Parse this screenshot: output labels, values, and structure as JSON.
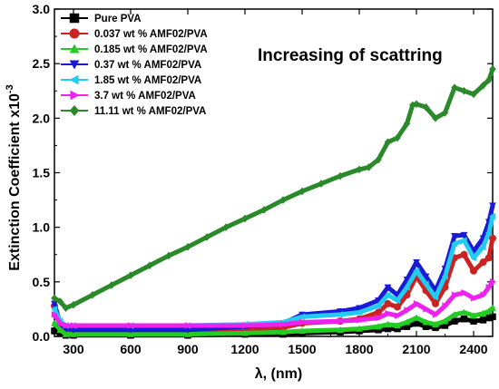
{
  "chart_data": {
    "type": "line",
    "title": "",
    "xlabel": "λ, (nm)",
    "ylabel": "Extinction Coefficient x10",
    "ylabel_superscript": "-3",
    "xlim": [
      200,
      2500
    ],
    "ylim": [
      0,
      3.0
    ],
    "xticks": [
      300,
      600,
      900,
      1200,
      1500,
      1800,
      2100,
      2400
    ],
    "yticks": [
      0.0,
      0.5,
      1.0,
      1.5,
      2.0,
      2.5,
      3.0
    ],
    "ytick_labels": [
      "0.0",
      "0.5",
      "1.0",
      "1.5",
      "2.0",
      "2.5",
      "3.0"
    ],
    "annotation": "Increasing of scattring",
    "legend_position": "top-left",
    "series": [
      {
        "name": "Pure PVA",
        "color": "#000000",
        "marker": "square",
        "x": [
          200,
          230,
          260,
          300,
          600,
          900,
          1200,
          1400,
          1500,
          1700,
          1800,
          1900,
          1950,
          2000,
          2050,
          2100,
          2150,
          2200,
          2250,
          2300,
          2350,
          2400,
          2450,
          2480,
          2500
        ],
        "y": [
          0.05,
          0.03,
          0.01,
          0.01,
          0.01,
          0.01,
          0.02,
          0.02,
          0.03,
          0.04,
          0.05,
          0.06,
          0.07,
          0.07,
          0.09,
          0.12,
          0.09,
          0.08,
          0.1,
          0.14,
          0.16,
          0.14,
          0.15,
          0.17,
          0.18
        ]
      },
      {
        "name": "0.037 wt % AMF02/PVA",
        "color": "#cc2222",
        "marker": "circle",
        "x": [
          200,
          230,
          260,
          300,
          600,
          900,
          1200,
          1400,
          1500,
          1700,
          1800,
          1900,
          1950,
          2000,
          2050,
          2100,
          2150,
          2200,
          2250,
          2300,
          2350,
          2400,
          2450,
          2480,
          2500
        ],
        "y": [
          0.28,
          0.1,
          0.06,
          0.05,
          0.05,
          0.05,
          0.07,
          0.08,
          0.12,
          0.14,
          0.16,
          0.22,
          0.3,
          0.27,
          0.38,
          0.55,
          0.42,
          0.3,
          0.45,
          0.72,
          0.75,
          0.6,
          0.68,
          0.72,
          0.9
        ]
      },
      {
        "name": "0.185 wt % AMF02/PVA",
        "color": "#22cc22",
        "marker": "triangle-up",
        "x": [
          200,
          230,
          260,
          300,
          600,
          900,
          1200,
          1400,
          1500,
          1700,
          1800,
          1900,
          1950,
          2000,
          2050,
          2100,
          2150,
          2200,
          2250,
          2300,
          2350,
          2400,
          2450,
          2480,
          2500
        ],
        "y": [
          0.12,
          0.06,
          0.02,
          0.02,
          0.02,
          0.02,
          0.03,
          0.04,
          0.05,
          0.06,
          0.07,
          0.09,
          0.11,
          0.1,
          0.13,
          0.17,
          0.13,
          0.11,
          0.14,
          0.2,
          0.22,
          0.19,
          0.21,
          0.23,
          0.26
        ]
      },
      {
        "name": "0.37 wt % AMF02/PVA",
        "color": "#1a1ad6",
        "marker": "triangle-down",
        "x": [
          200,
          230,
          260,
          300,
          600,
          900,
          1200,
          1400,
          1500,
          1700,
          1800,
          1900,
          1950,
          2000,
          2050,
          2100,
          2150,
          2200,
          2250,
          2300,
          2350,
          2400,
          2450,
          2480,
          2500
        ],
        "y": [
          0.3,
          0.12,
          0.07,
          0.06,
          0.06,
          0.06,
          0.09,
          0.12,
          0.2,
          0.23,
          0.26,
          0.33,
          0.45,
          0.38,
          0.52,
          0.68,
          0.55,
          0.42,
          0.62,
          0.92,
          0.93,
          0.78,
          0.9,
          1.05,
          1.2
        ]
      },
      {
        "name": "1.85 wt % AMF02/PVA",
        "color": "#22ccee",
        "marker": "triangle-left",
        "x": [
          200,
          230,
          260,
          300,
          600,
          900,
          1200,
          1400,
          1500,
          1700,
          1800,
          1900,
          1950,
          2000,
          2050,
          2100,
          2150,
          2200,
          2250,
          2300,
          2350,
          2400,
          2450,
          2480,
          2500
        ],
        "y": [
          0.25,
          0.14,
          0.1,
          0.1,
          0.1,
          0.1,
          0.11,
          0.13,
          0.18,
          0.2,
          0.22,
          0.28,
          0.38,
          0.33,
          0.45,
          0.6,
          0.48,
          0.36,
          0.55,
          0.85,
          0.88,
          0.72,
          0.82,
          0.95,
          1.1
        ]
      },
      {
        "name": "3.7 wt % AMF02/PVA",
        "color": "#ee22ee",
        "marker": "triangle-right",
        "x": [
          200,
          230,
          260,
          300,
          600,
          900,
          1200,
          1400,
          1500,
          1700,
          1800,
          1900,
          1950,
          2000,
          2050,
          2100,
          2150,
          2200,
          2250,
          2300,
          2350,
          2400,
          2450,
          2480,
          2500
        ],
        "y": [
          0.2,
          0.12,
          0.1,
          0.1,
          0.1,
          0.1,
          0.1,
          0.11,
          0.13,
          0.14,
          0.15,
          0.17,
          0.21,
          0.19,
          0.24,
          0.3,
          0.25,
          0.2,
          0.28,
          0.38,
          0.4,
          0.35,
          0.38,
          0.45,
          0.5
        ]
      },
      {
        "name": "11.11 wt % AMF02/PVA",
        "color": "#2a8a2a",
        "marker": "diamond",
        "x": [
          200,
          230,
          260,
          300,
          400,
          500,
          600,
          700,
          800,
          900,
          1000,
          1100,
          1200,
          1300,
          1400,
          1500,
          1600,
          1700,
          1800,
          1850,
          1900,
          1950,
          2000,
          2050,
          2080,
          2100,
          2150,
          2200,
          2250,
          2300,
          2350,
          2400,
          2450,
          2480,
          2500
        ],
        "y": [
          0.35,
          0.32,
          0.26,
          0.29,
          0.38,
          0.47,
          0.56,
          0.65,
          0.74,
          0.82,
          0.91,
          1.0,
          1.08,
          1.16,
          1.25,
          1.33,
          1.4,
          1.47,
          1.53,
          1.55,
          1.62,
          1.78,
          1.82,
          1.95,
          2.12,
          2.13,
          2.1,
          2.0,
          2.05,
          2.28,
          2.25,
          2.22,
          2.3,
          2.35,
          2.45
        ]
      }
    ]
  }
}
